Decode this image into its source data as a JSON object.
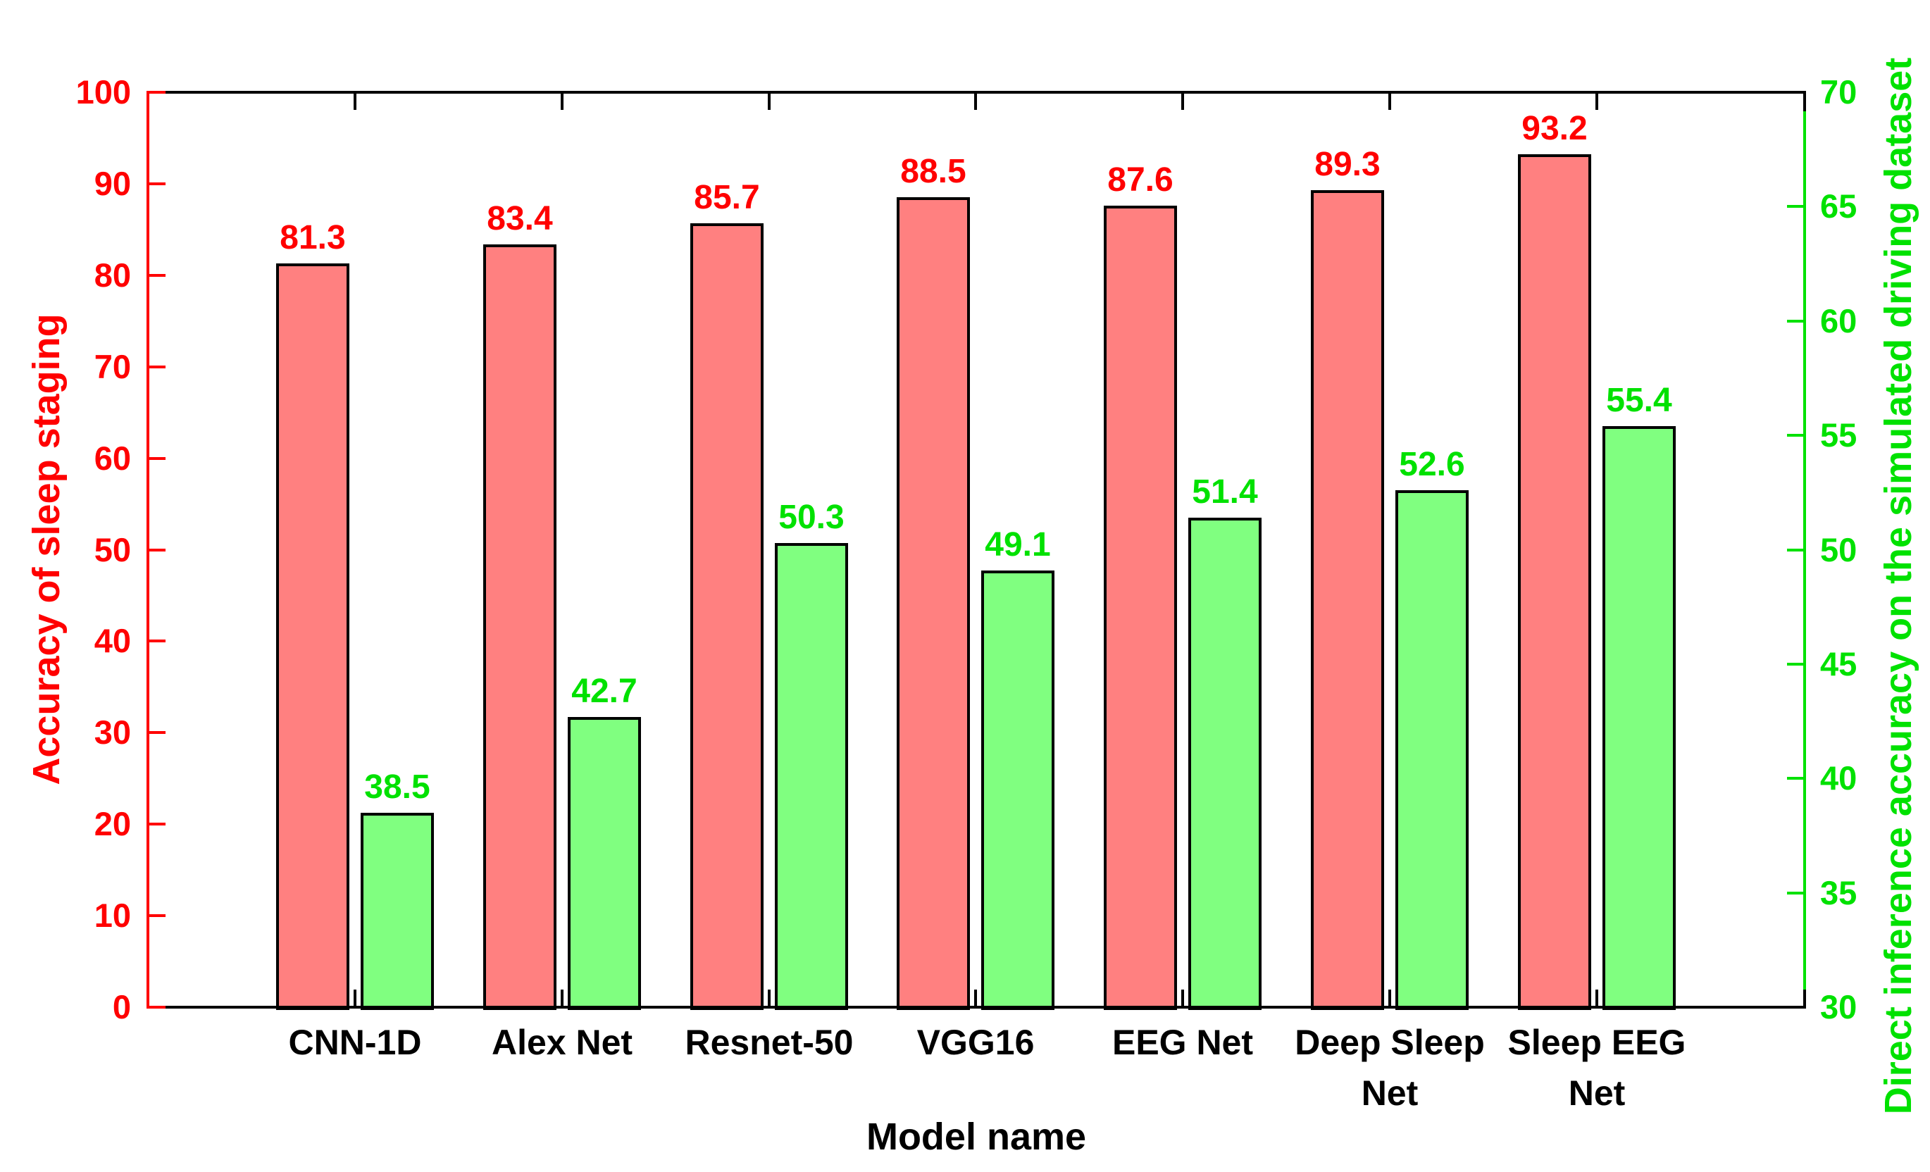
{
  "figure": {
    "background": "#ffffff"
  },
  "chart_data": {
    "type": "bar",
    "xlabel": "Model name",
    "categories": [
      "CNN-1D",
      "Alex Net",
      "Resnet-50",
      "VGG16",
      "EEG Net",
      "Deep Sleep Net",
      "Sleep EEG Net"
    ],
    "categories_wrapped": [
      [
        "CNN-1D"
      ],
      [
        "Alex Net"
      ],
      [
        "Resnet-50"
      ],
      [
        "VGG16"
      ],
      [
        "EEG Net"
      ],
      [
        "Deep Sleep",
        "Net"
      ],
      [
        "Sleep EEG",
        "Net"
      ]
    ],
    "series": [
      {
        "name": "Accuracy of sleep staging",
        "axis": "left",
        "bar_color": "#ff8080",
        "bar_edge_color": "#000000",
        "label_color": "#ff0000",
        "values": [
          81.3,
          83.4,
          85.7,
          88.5,
          87.6,
          89.3,
          93.2
        ]
      },
      {
        "name": "Direct inference accuracy on the simulated driving dataset",
        "axis": "right",
        "bar_color": "#80ff80",
        "bar_edge_color": "#000000",
        "label_color": "#00e100",
        "values": [
          38.5,
          42.7,
          50.3,
          49.1,
          51.4,
          52.6,
          55.4
        ]
      }
    ],
    "left_axis": {
      "label": "Accuracy of sleep staging",
      "color": "#ff0000",
      "min": 0,
      "max": 100,
      "tick_step": 10,
      "ticks": [
        0,
        10,
        20,
        30,
        40,
        50,
        60,
        70,
        80,
        90,
        100
      ]
    },
    "right_axis": {
      "label": "Direct inference accuracy on the simulated driving dataset",
      "color": "#00e100",
      "min": 30,
      "max": 70,
      "tick_step": 5,
      "ticks": [
        30,
        35,
        40,
        45,
        50,
        55,
        60,
        65,
        70
      ]
    },
    "x_axis_color": "#000000",
    "grid": false,
    "legend": false
  }
}
